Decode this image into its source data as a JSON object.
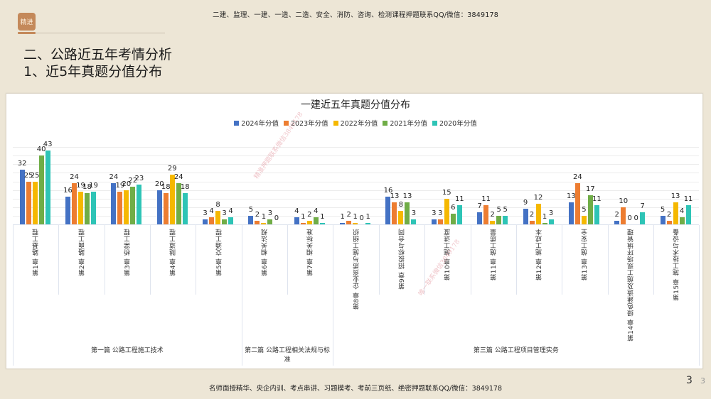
{
  "header": {
    "top_note": "二建、监理、一建、一造、二造、安全、消防、咨询、检测课程押题联系QQ/微信：3849178",
    "logo_text": "精进",
    "title_line1": "二、公路近五年考情分析",
    "title_line2": "1、近5年真题分值分布"
  },
  "footer": {
    "bottom_note": "名师面授精华、央企内训、考点串讲、习题模考、考前三页纸、绝密押题联系QQ/微信：3849178",
    "page_number": "3",
    "page_number_small": "3"
  },
  "watermarks": [
    "精准押题联系微信3849178",
    "唯一联系微信3849178"
  ],
  "colors": {
    "2024": "#4472c4",
    "2023": "#ed7d31",
    "2022": "#f5b800",
    "2021": "#70ad47",
    "2020": "#2ec4b6"
  },
  "chart_data": {
    "type": "bar",
    "title": "一建近五年真题分值分布",
    "xlabel": "",
    "ylabel": "",
    "ylim": [
      0,
      45
    ],
    "grid": true,
    "legend_position": "top",
    "categories": [
      "第1章 路基工程",
      "第2章 路面工程",
      "第3章 桥梁工程",
      "第4章 隧道工程",
      "第5章 交通工程",
      "第6章 相关法规",
      "第7章 相关标准",
      "第8章 企业资质与施工组织",
      "第9章 招投标与合同",
      "第10章 施工进度",
      "第11章 施工质量",
      "第12章 施工成本",
      "第13章 施工安全",
      "第14章 绿色建造及施工现场环境管理",
      "第15章 施工技术与设备"
    ],
    "groups": [
      {
        "label": "第一篇 公路工程施工技术",
        "start": 0,
        "end": 4
      },
      {
        "label": "第二篇 公路工程相关法规与标准",
        "label_line1": "第二篇 公路工程相关法规与标",
        "label_line2": "准",
        "start": 5,
        "end": 6
      },
      {
        "label": "第三篇 公路工程项目管理实务",
        "start": 7,
        "end": 14
      }
    ],
    "series": [
      {
        "name": "2024年分值",
        "key": "2024",
        "values": [
          32,
          16,
          24,
          20,
          3,
          5,
          4,
          1,
          16,
          3,
          7,
          9,
          13,
          2,
          5
        ]
      },
      {
        "name": "2023年分值",
        "key": "2023",
        "values": [
          25,
          24,
          19,
          18,
          4,
          2,
          1,
          2,
          13,
          3,
          11,
          2,
          24,
          10,
          2
        ]
      },
      {
        "name": "2022年分值",
        "key": "2022",
        "values": [
          25,
          19,
          20,
          29,
          8,
          1,
          2,
          1,
          8,
          15,
          2,
          12,
          5,
          0,
          13
        ]
      },
      {
        "name": "2021年分值",
        "key": "2021",
        "values": [
          40,
          18,
          22,
          24,
          3,
          3,
          4,
          0,
          13,
          6,
          5,
          1,
          17,
          0,
          4
        ]
      },
      {
        "name": "2020年分值",
        "key": "2020",
        "values": [
          43,
          19,
          23,
          18,
          4,
          0,
          1,
          1,
          3,
          11,
          5,
          3,
          11,
          7,
          11
        ]
      }
    ]
  }
}
